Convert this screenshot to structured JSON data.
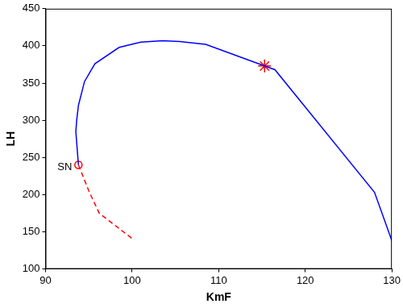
{
  "chart_data": {
    "type": "line",
    "x_label": "KmF",
    "y_label": "LH",
    "xlim": [
      90,
      130
    ],
    "xticks": [
      90,
      100,
      110,
      120,
      130
    ],
    "ylim": [
      100,
      450
    ],
    "yticks": [
      100,
      150,
      200,
      250,
      300,
      350,
      400,
      450
    ],
    "grid": false,
    "series": [
      {
        "color": "#0000ff",
        "line_style": "solid",
        "x": [
          93.8,
          93.5,
          93.6,
          93.8,
          94.5,
          95.7,
          98.5,
          101,
          103.5,
          105.5,
          108.5,
          115.3,
          116.5,
          128,
          130
        ],
        "values": [
          240,
          285,
          300,
          320,
          352,
          376,
          398,
          405,
          407,
          406,
          402,
          373,
          368,
          203,
          138
        ]
      },
      {
        "color": "#ff0000",
        "line_style": "dashed",
        "x": [
          93.8,
          95,
          96.2,
          100
        ],
        "values": [
          240,
          205,
          175,
          141
        ]
      }
    ],
    "annotations": [
      {
        "text": "SN",
        "x": 93.8,
        "y": 240,
        "marker": "circle",
        "color": "#ff0000"
      },
      {
        "x": 115.3,
        "y": 373,
        "marker": "star",
        "color": "#ff0000"
      }
    ]
  }
}
